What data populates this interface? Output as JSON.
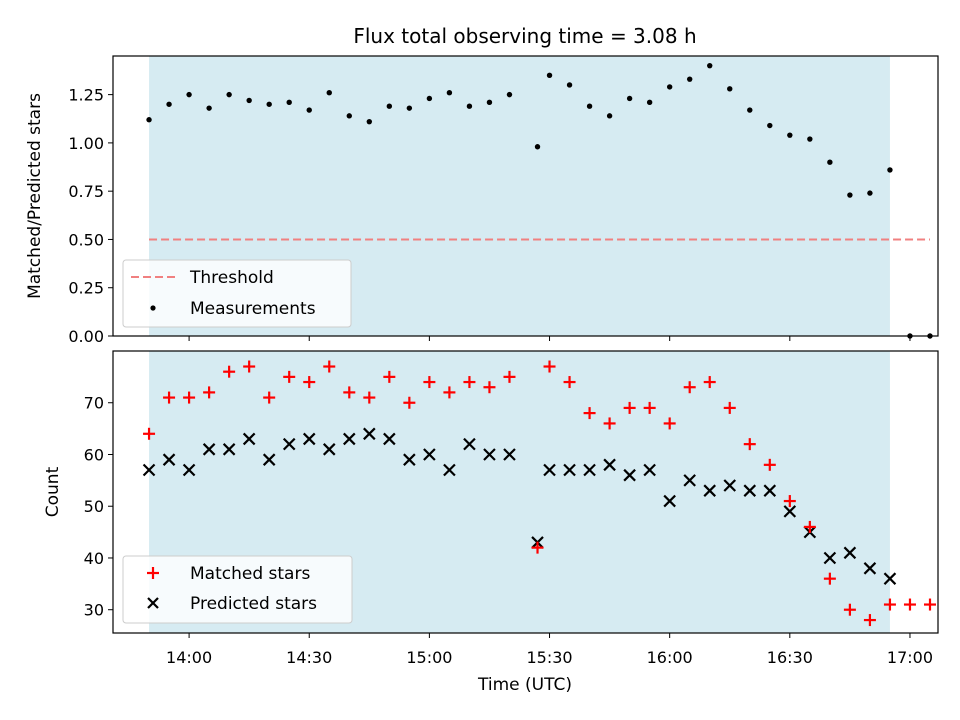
{
  "chart_data": [
    {
      "type": "scatter",
      "title": "Flux total observing time = 3.08 h",
      "ylabel": "Matched/Predicted stars",
      "xlabel": "",
      "ylim": [
        0,
        1.45
      ],
      "xlim": [
        "13:41",
        "17:07"
      ],
      "yticks": [
        0.0,
        0.25,
        0.5,
        0.75,
        1.0,
        1.25
      ],
      "ytick_labels": [
        "0.00",
        "0.25",
        "0.50",
        "0.75",
        "1.00",
        "1.25"
      ],
      "shaded_span": [
        "13:50",
        "16:55"
      ],
      "threshold": {
        "name": "Threshold",
        "value": 0.5,
        "x_range": [
          "13:50",
          "17:05"
        ],
        "color": "#f08080"
      },
      "series": [
        {
          "name": "Measurements",
          "color": "#000000",
          "x": [
            "13:50",
            "13:55",
            "14:00",
            "14:05",
            "14:10",
            "14:15",
            "14:20",
            "14:25",
            "14:30",
            "14:35",
            "14:40",
            "14:45",
            "14:50",
            "14:55",
            "15:00",
            "15:05",
            "15:10",
            "15:15",
            "15:20",
            "15:27",
            "15:30",
            "15:35",
            "15:40",
            "15:45",
            "15:50",
            "15:55",
            "16:00",
            "16:05",
            "16:10",
            "16:15",
            "16:20",
            "16:25",
            "16:30",
            "16:35",
            "16:40",
            "16:45",
            "16:50",
            "16:55",
            "17:00",
            "17:05"
          ],
          "values": [
            1.12,
            1.2,
            1.25,
            1.18,
            1.25,
            1.22,
            1.2,
            1.21,
            1.17,
            1.26,
            1.14,
            1.11,
            1.19,
            1.18,
            1.23,
            1.26,
            1.19,
            1.21,
            1.25,
            0.98,
            1.35,
            1.3,
            1.19,
            1.14,
            1.23,
            1.21,
            1.29,
            1.33,
            1.4,
            1.28,
            1.17,
            1.09,
            1.04,
            1.02,
            0.9,
            0.73,
            0.74,
            0.86,
            0.0,
            0.0
          ]
        }
      ],
      "legend": {
        "placement": "lower-left",
        "entries": [
          "Threshold",
          "Measurements"
        ]
      },
      "grid": false
    },
    {
      "type": "scatter",
      "title": "",
      "xlabel": "Time (UTC)",
      "ylabel": "Count",
      "ylim": [
        25.5,
        80
      ],
      "xlim": [
        "13:41",
        "17:07"
      ],
      "yticks": [
        30,
        40,
        50,
        60,
        70
      ],
      "ytick_labels": [
        "30",
        "40",
        "50",
        "60",
        "70"
      ],
      "xtick_labels": [
        "14:00",
        "14:30",
        "15:00",
        "15:30",
        "16:00",
        "16:30",
        "17:00"
      ],
      "shaded_span": [
        "13:50",
        "16:55"
      ],
      "series": [
        {
          "name": "Matched stars",
          "marker": "+",
          "color": "#ff0000",
          "x": [
            "13:50",
            "13:55",
            "14:00",
            "14:05",
            "14:10",
            "14:15",
            "14:20",
            "14:25",
            "14:30",
            "14:35",
            "14:40",
            "14:45",
            "14:50",
            "14:55",
            "15:00",
            "15:05",
            "15:10",
            "15:15",
            "15:20",
            "15:27",
            "15:30",
            "15:35",
            "15:40",
            "15:45",
            "15:50",
            "15:55",
            "16:00",
            "16:05",
            "16:10",
            "16:15",
            "16:20",
            "16:25",
            "16:30",
            "16:35",
            "16:40",
            "16:45",
            "16:50",
            "16:55",
            "17:00",
            "17:05"
          ],
          "values": [
            64,
            71,
            71,
            72,
            76,
            77,
            71,
            75,
            74,
            77,
            72,
            71,
            75,
            70,
            74,
            72,
            74,
            73,
            75,
            42,
            77,
            74,
            68,
            66,
            69,
            69,
            66,
            73,
            74,
            69,
            62,
            58,
            51,
            46,
            36,
            30,
            28,
            31,
            31,
            31
          ]
        },
        {
          "name": "Predicted stars",
          "marker": "x",
          "color": "#000000",
          "x": [
            "13:50",
            "13:55",
            "14:00",
            "14:05",
            "14:10",
            "14:15",
            "14:20",
            "14:25",
            "14:30",
            "14:35",
            "14:40",
            "14:45",
            "14:50",
            "14:55",
            "15:00",
            "15:05",
            "15:10",
            "15:15",
            "15:20",
            "15:27",
            "15:30",
            "15:35",
            "15:40",
            "15:45",
            "15:50",
            "15:55",
            "16:00",
            "16:05",
            "16:10",
            "16:15",
            "16:20",
            "16:25",
            "16:30",
            "16:35",
            "16:40",
            "16:45",
            "16:50",
            "16:55"
          ],
          "values": [
            57,
            59,
            57,
            61,
            61,
            63,
            59,
            62,
            63,
            61,
            63,
            64,
            63,
            59,
            60,
            57,
            62,
            60,
            60,
            43,
            57,
            57,
            57,
            58,
            56,
            57,
            51,
            55,
            53,
            54,
            53,
            53,
            49,
            45,
            40,
            41,
            38,
            36
          ]
        }
      ],
      "legend": {
        "placement": "lower-left",
        "entries": [
          "Matched stars",
          "Predicted stars"
        ]
      },
      "grid": false
    }
  ],
  "colors": {
    "shade": "#add8e6",
    "threshold": "#f08080",
    "matched": "#ff0000",
    "predicted": "#000000"
  }
}
